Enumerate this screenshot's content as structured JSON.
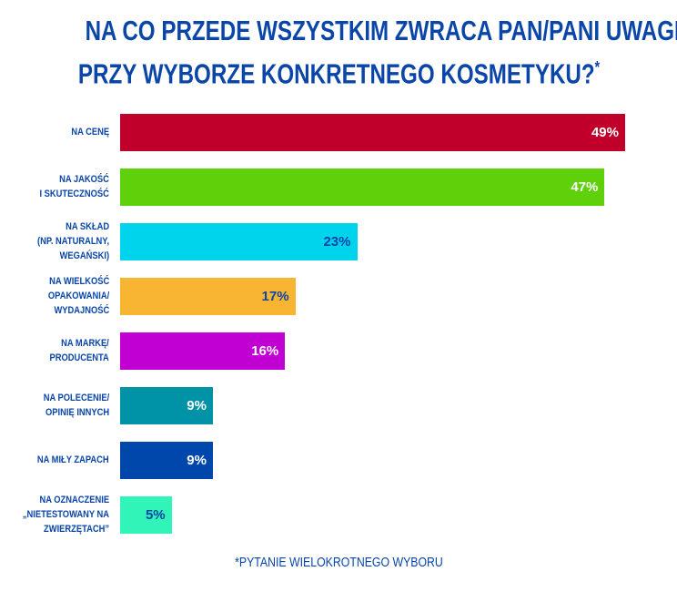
{
  "chart_data": {
    "type": "bar",
    "orientation": "horizontal",
    "title_line1": "NA CO PRZEDE WSZYSTKIM ZWRACA PAN/PANI UWAGĘ",
    "title_line2": "PRZY WYBORZE KONKRETNEGO KOSMETYKU?",
    "title_mark": "*",
    "footnote": "*PYTANIE WIELOKROTNEGO WYBORU",
    "xlim": [
      0,
      49
    ],
    "categories": [
      "NA CENĘ",
      "NA JAKOŚĆ\nI SKUTECZNOŚĆ",
      "NA SKŁAD\n(NP. NATURALNY,\nWEGAŃSKI)",
      "NA WIELKOŚĆ\nOPAKOWANIA/\nWYDAJNOŚĆ",
      "NA MARKĘ/\nPRODUCENTA",
      "NA POLECENIE/\nOPINIĘ INNYCH",
      "NA MIŁY ZAPACH",
      "NA OZNACZENIE\n„NIETESTOWANY NA\nZWIERZĘTACH”"
    ],
    "values": [
      49,
      47,
      23,
      17,
      16,
      9,
      9,
      5
    ],
    "value_labels": [
      "49%",
      "47%",
      "23%",
      "17%",
      "16%",
      "9%",
      "9%",
      "5%"
    ],
    "colors": [
      "#c0002a",
      "#5ed10b",
      "#00d4ec",
      "#f7b531",
      "#c100d4",
      "#0093a8",
      "#0047ab",
      "#31f5b8"
    ],
    "label_colors": [
      "#ffffff",
      "#ffffff",
      "#0a45a8",
      "#0a45a8",
      "#ffffff",
      "#ffffff",
      "#ffffff",
      "#0a45a8"
    ]
  }
}
